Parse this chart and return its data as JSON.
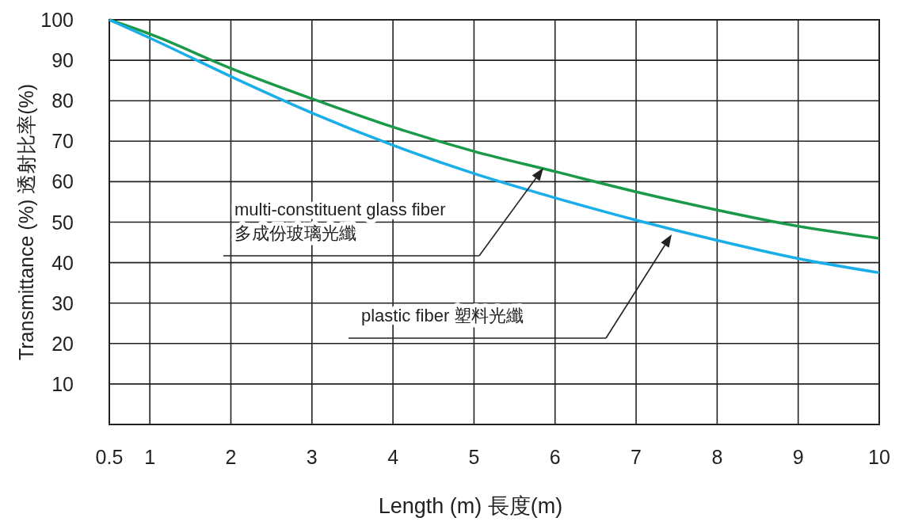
{
  "chart_data": {
    "type": "line",
    "xlabel": "Length (m) 長度(m)",
    "ylabel": "Transmittance (%) 透射比率(%)",
    "x": [
      0.5,
      1,
      2,
      3,
      4,
      5,
      6,
      7,
      8,
      9,
      10
    ],
    "series": [
      {
        "color": "#1a9a48",
        "values": [
          100,
          96.5,
          88,
          80.5,
          73.5,
          67.5,
          62.5,
          57.5,
          53,
          49,
          46
        ]
      },
      {
        "color": "#1aaee8",
        "values": [
          100,
          95.5,
          86,
          77,
          69,
          62,
          56,
          50.5,
          45.5,
          41,
          37.5
        ]
      }
    ],
    "xlim": [
      0.5,
      10
    ],
    "xticks": [
      0.5,
      1,
      2,
      3,
      4,
      5,
      6,
      7,
      8,
      9,
      10
    ],
    "ylim": [
      0,
      100
    ],
    "yticks": [
      10,
      20,
      30,
      40,
      50,
      60,
      70,
      80,
      90,
      100
    ],
    "grid": true,
    "marker": "none",
    "line_style": "solid",
    "annotations": [
      "multi-constituent glass fiber\n多成份玻璃光纖",
      "plastic fiber 塑料光纖"
    ]
  }
}
